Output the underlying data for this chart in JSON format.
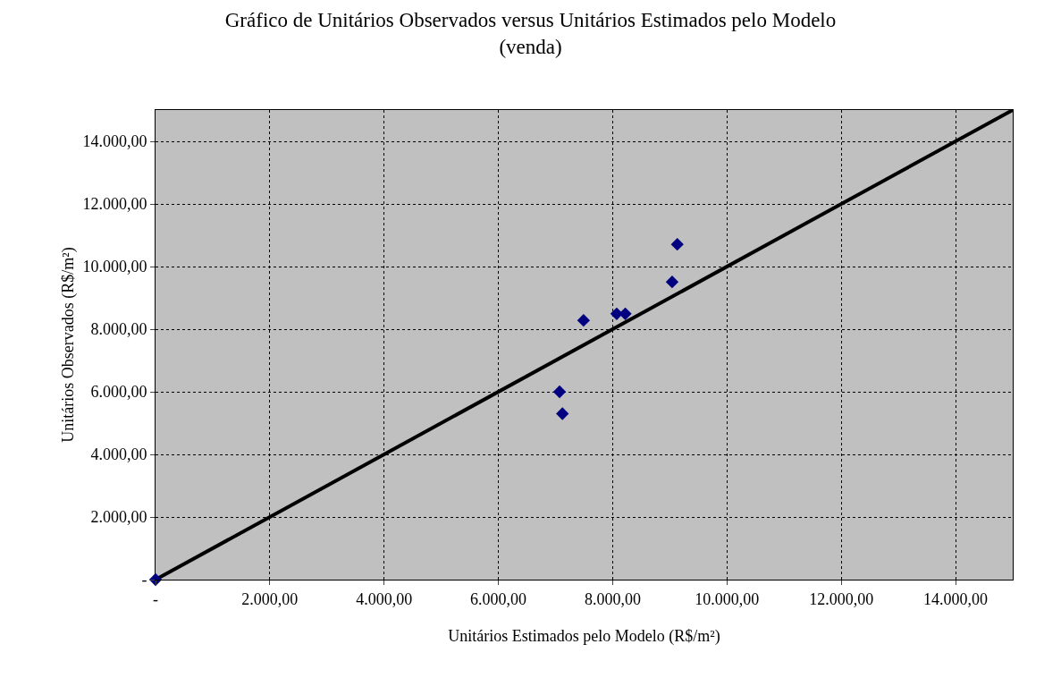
{
  "chart_data": {
    "type": "scatter",
    "title": "Gráfico de Unitários Observados versus Unitários Estimados pelo Modelo\n(venda)",
    "xlabel": "Unitários Estimados pelo Modelo (R$/m²)",
    "ylabel": "Unitários Observados (R$/m²)",
    "xlim": [
      0,
      15000
    ],
    "ylim": [
      0,
      15000
    ],
    "xticks": [
      {
        "value": 0,
        "label": "-"
      },
      {
        "value": 2000,
        "label": "2.000,00"
      },
      {
        "value": 4000,
        "label": "4.000,00"
      },
      {
        "value": 6000,
        "label": "6.000,00"
      },
      {
        "value": 8000,
        "label": "8.000,00"
      },
      {
        "value": 10000,
        "label": "10.000,00"
      },
      {
        "value": 12000,
        "label": "12.000,00"
      },
      {
        "value": 14000,
        "label": "14.000,00"
      }
    ],
    "yticks": [
      {
        "value": 0,
        "label": "-"
      },
      {
        "value": 2000,
        "label": "2.000,00"
      },
      {
        "value": 4000,
        "label": "4.000,00"
      },
      {
        "value": 6000,
        "label": "6.000,00"
      },
      {
        "value": 8000,
        "label": "8.000,00"
      },
      {
        "value": 10000,
        "label": "10.000,00"
      },
      {
        "value": 12000,
        "label": "12.000,00"
      },
      {
        "value": 14000,
        "label": "14.000,00"
      }
    ],
    "grid": true,
    "legend": false,
    "series": [
      {
        "type": "line",
        "color": "#000000",
        "marker": "none",
        "line_style": "solid",
        "x": [
          0,
          15000
        ],
        "values": [
          0,
          15000
        ]
      },
      {
        "color": "#000080",
        "marker": "diamond",
        "x": [
          0,
          7070,
          7120,
          7490,
          8070,
          8220,
          9040,
          9130
        ],
        "values": [
          0,
          6000,
          5300,
          8280,
          8490,
          8490,
          9510,
          10710
        ]
      }
    ]
  }
}
